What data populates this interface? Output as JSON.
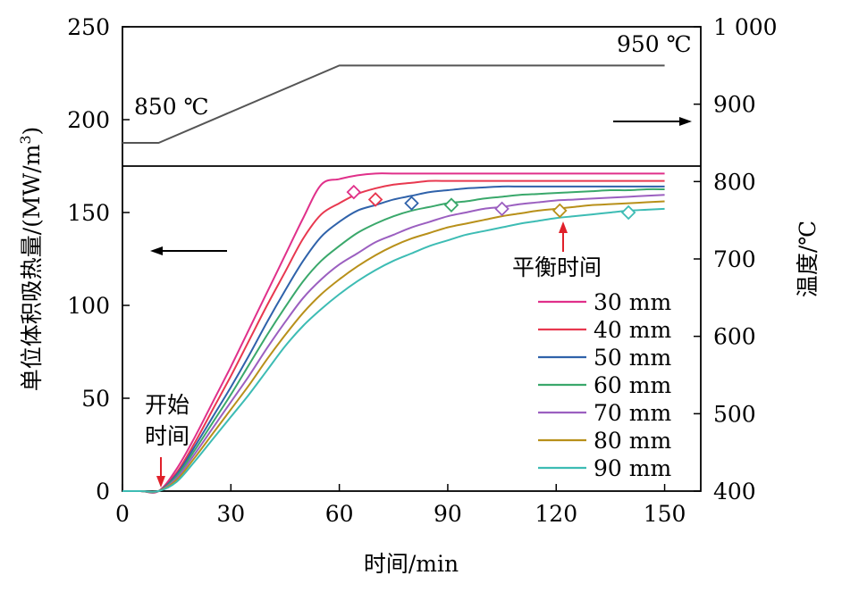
{
  "chart_data": {
    "type": "line",
    "xlabel": "时间/min",
    "ylabel_left": "单位体积吸热量/(MW/m",
    "ylabel_left_sup": "3",
    "ylabel_left_close": ")",
    "ylabel_right": "温度/℃",
    "xlim": [
      0,
      160
    ],
    "ylim_left": [
      0,
      250
    ],
    "ylim_right": [
      400,
      1000
    ],
    "x_ticks": [
      "0",
      "30",
      "60",
      "90",
      "120",
      "150"
    ],
    "y_left_ticks": [
      "0",
      "50",
      "100",
      "150",
      "200",
      "250"
    ],
    "y_right_ticks": [
      "400",
      "500",
      "600",
      "700",
      "800",
      "900",
      "1 000"
    ],
    "temperature_program": {
      "x": [
        0,
        10,
        60,
        150
      ],
      "y": [
        850,
        850,
        950,
        950
      ],
      "label_start": "850 ℃",
      "label_end": "950 ℃",
      "color": "#555555"
    },
    "x": [
      0,
      5,
      10,
      15,
      20,
      25,
      30,
      35,
      40,
      45,
      50,
      55,
      60,
      65,
      70,
      75,
      80,
      85,
      90,
      95,
      100,
      105,
      110,
      115,
      120,
      125,
      130,
      135,
      140,
      145,
      150
    ],
    "series": [
      {
        "name": "30 mm",
        "color": "#e0308a",
        "values": [
          0,
          0,
          0,
          12,
          29,
          48,
          67,
          87,
          107,
          127,
          147,
          165,
          168,
          170,
          171,
          171,
          171,
          171,
          171,
          171,
          171,
          171,
          171,
          171,
          171,
          171,
          171,
          171,
          171,
          171,
          171
        ],
        "balance": {
          "x": 64,
          "y": 161
        }
      },
      {
        "name": "40 mm",
        "color": "#e8384f",
        "values": [
          0,
          0,
          0,
          10,
          26,
          44,
          62,
          81,
          100,
          118,
          136,
          149,
          155,
          160,
          163,
          165,
          166,
          167,
          167,
          167,
          167,
          167,
          167,
          167,
          167,
          167,
          167,
          167,
          167,
          167,
          167
        ],
        "balance": {
          "x": 70,
          "y": 157
        }
      },
      {
        "name": "50 mm",
        "color": "#2f62aa",
        "values": [
          0,
          0,
          0,
          9,
          24,
          40,
          56,
          73,
          91,
          108,
          124,
          137,
          145,
          151,
          154,
          157,
          159,
          161,
          162,
          163,
          163.5,
          164,
          164,
          164,
          164,
          164,
          164,
          164,
          164,
          164,
          164
        ],
        "balance": {
          "x": 80,
          "y": 155
        }
      },
      {
        "name": "60 mm",
        "color": "#3aa86b",
        "values": [
          0,
          0,
          0,
          8,
          22,
          37,
          52,
          68,
          84,
          99,
          113,
          124,
          132,
          139,
          144,
          148,
          151,
          153,
          155,
          156,
          157.5,
          158.5,
          159.5,
          160,
          160.5,
          161,
          161.5,
          162,
          162,
          162.5,
          162.5
        ],
        "balance": {
          "x": 91,
          "y": 154
        }
      },
      {
        "name": "70 mm",
        "color": "#9b5fc0",
        "values": [
          0,
          0,
          0,
          7,
          20,
          34,
          48,
          62,
          77,
          91,
          104,
          114,
          122,
          128,
          134,
          138,
          142,
          145,
          148,
          150,
          152,
          153,
          154.5,
          155.5,
          156.5,
          157,
          157.5,
          158,
          158.5,
          159,
          159.5
        ],
        "balance": {
          "x": 105,
          "y": 152
        }
      },
      {
        "name": "80 mm",
        "color": "#b8901a",
        "values": [
          0,
          0,
          0,
          6,
          18,
          31,
          44,
          57,
          71,
          84,
          96,
          106,
          114,
          121,
          127,
          132,
          136,
          139,
          142,
          144,
          146,
          148,
          149.5,
          151,
          152,
          153,
          154,
          154.5,
          155,
          155.5,
          156
        ],
        "balance": {
          "x": 121,
          "y": 151
        }
      },
      {
        "name": "90 mm",
        "color": "#3dbcb4",
        "values": [
          0,
          0,
          0,
          5,
          16,
          28,
          40,
          52,
          65,
          78,
          89,
          98,
          106,
          113,
          119,
          124,
          128,
          132,
          135,
          138,
          140,
          142,
          144,
          145.5,
          147,
          148,
          149,
          150,
          151,
          151.5,
          152
        ],
        "balance": {
          "x": 140,
          "y": 150
        }
      }
    ],
    "annotations": {
      "start_time": [
        "开始",
        "时间"
      ],
      "balance_time": "平衡时间"
    },
    "grid": false,
    "legend_position": "bottom-right"
  }
}
